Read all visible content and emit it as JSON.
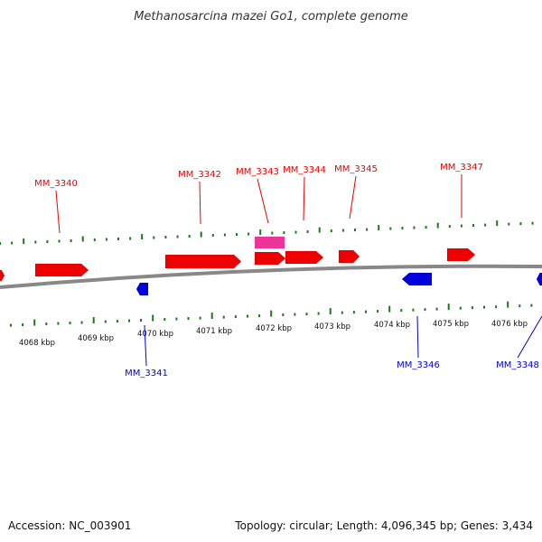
{
  "header": {
    "title": "Methanosarcina mazei Go1, complete genome"
  },
  "footer": {
    "accession": "Accession: NC_003901",
    "summary": "Topology: circular; Length: 4,096,345 bp; Genes: 3,434"
  },
  "colors": {
    "forward": "#ee0000",
    "reverse": "#0000dd",
    "highlight": "#ee3399",
    "backbone": "#888888",
    "ticks": "#1a7a1a"
  },
  "scale": {
    "labels": [
      "4068 kbp",
      "4069 kbp",
      "4070 kbp",
      "4071 kbp",
      "4072 kbp",
      "4073 kbp",
      "4074 kbp",
      "4075 kbp",
      "4076 kbp"
    ]
  },
  "genes": [
    {
      "name": "MM_3340",
      "strand": "+",
      "labeled": true
    },
    {
      "name": "MM_3341",
      "strand": "-",
      "labeled": true
    },
    {
      "name": "MM_3342",
      "strand": "+",
      "labeled": true
    },
    {
      "name": "MM_3343",
      "strand": "+",
      "labeled": true,
      "highlight": true
    },
    {
      "name": "MM_3344",
      "strand": "+",
      "labeled": true
    },
    {
      "name": "MM_3345",
      "strand": "+",
      "labeled": true
    },
    {
      "name": "MM_3346",
      "strand": "-",
      "labeled": true
    },
    {
      "name": "MM_3347",
      "strand": "+",
      "labeled": true
    },
    {
      "name": "MM_3348",
      "strand": "-",
      "labeled": true
    }
  ]
}
